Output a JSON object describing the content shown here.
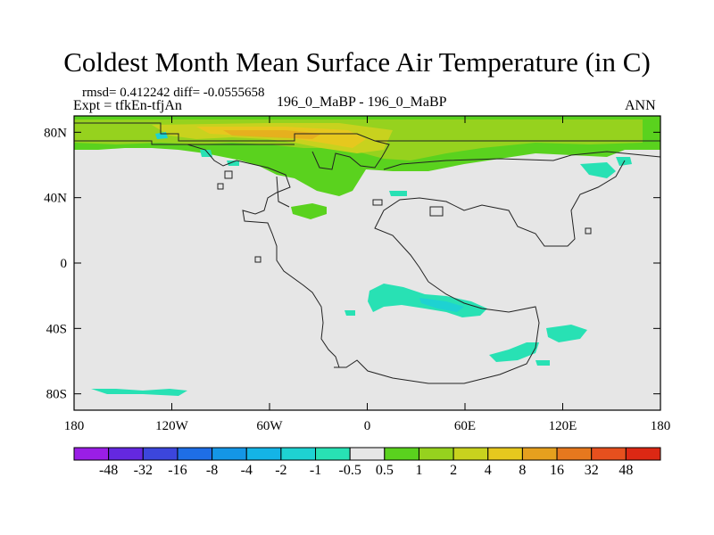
{
  "title": "Coldest Month Mean Surface Air Temperature (in C)",
  "stats_line": "rmsd= 0.412242 diff= -0.0555658",
  "expt_line": "Expt = tfkEn-tfjAn",
  "center_label": "196_0_MaBP - 196_0_MaBP",
  "right_label": "ANN",
  "chart_data": {
    "type": "heatmap",
    "description_units": "temperature difference (C)",
    "x_axis": {
      "range": [
        -180,
        180
      ],
      "ticks": [
        -180,
        -120,
        -60,
        0,
        60,
        120,
        180
      ],
      "tick_labels": [
        "180",
        "120W",
        "60W",
        "0",
        "60E",
        "120E",
        "180"
      ]
    },
    "y_axis": {
      "range": [
        -90,
        90
      ],
      "ticks": [
        80,
        40,
        0,
        -40,
        -80
      ],
      "tick_labels": [
        "80N",
        "40N",
        "0",
        "40S",
        "80S"
      ]
    },
    "background_value_range": [
      -0.5,
      0.5
    ],
    "colorbar": {
      "levels": [
        "-48",
        "-32",
        "-16",
        "-8",
        "-4",
        "-2",
        "-1",
        "-0.5",
        "0.5",
        "1",
        "2",
        "4",
        "8",
        "16",
        "32",
        "48"
      ],
      "colors": [
        "#9a1ee6",
        "#6428e0",
        "#3c46dc",
        "#1e6ee6",
        "#1496e6",
        "#14b4e6",
        "#1ed2d2",
        "#28e1b4",
        "#e6e6e6",
        "#5ad21e",
        "#96d21e",
        "#c8d21e",
        "#e6c81e",
        "#e6a01e",
        "#e6781e",
        "#e6501e",
        "#dc2814"
      ]
    },
    "grid": false
  }
}
